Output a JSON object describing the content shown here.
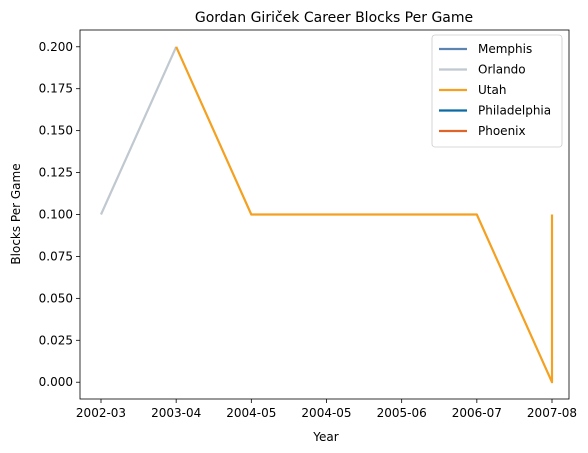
{
  "chart_data": {
    "type": "line",
    "title": "Gordan Giriček Career Blocks Per Game",
    "xlabel": "Year",
    "ylabel": "Blocks Per Game",
    "x_tick_labels": [
      "2002-03",
      "2003-04",
      "2004-05",
      "2004-05",
      "2005-06",
      "2006-07",
      "2007-08"
    ],
    "y_ticks": [
      "0.000",
      "0.025",
      "0.050",
      "0.075",
      "0.100",
      "0.125",
      "0.150",
      "0.175",
      "0.200"
    ],
    "ylim": [
      -0.01,
      0.21
    ],
    "grid": false,
    "legend_position": "top-right",
    "series": [
      {
        "name": "Memphis",
        "color": "#5b84b1",
        "points": []
      },
      {
        "name": "Orlando",
        "color": "#c0c8d0",
        "points": [
          {
            "x": 0,
            "y": 0.1
          },
          {
            "x": 1,
            "y": 0.2
          }
        ]
      },
      {
        "name": "Utah",
        "color": "#f4a020",
        "points": [
          {
            "x": 1,
            "y": 0.2
          },
          {
            "x": 2,
            "y": 0.1
          },
          {
            "x": 3,
            "y": 0.1
          },
          {
            "x": 4,
            "y": 0.1
          },
          {
            "x": 5,
            "y": 0.1
          },
          {
            "x": 6,
            "y": 0.0
          },
          {
            "x": 6,
            "y": 0.1
          }
        ]
      },
      {
        "name": "Philadelphia",
        "color": "#0b6aa3",
        "points": []
      },
      {
        "name": "Phoenix",
        "color": "#e0642a",
        "points": []
      }
    ]
  }
}
